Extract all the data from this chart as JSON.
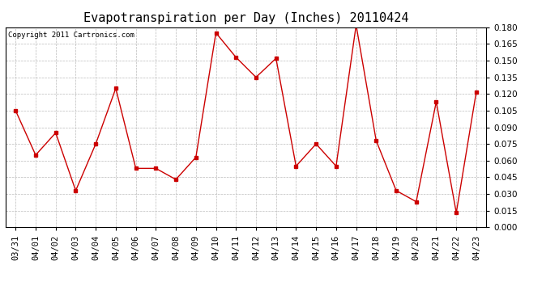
{
  "title": "Evapotranspiration per Day (Inches) 20110424",
  "copyright": "Copyright 2011 Cartronics.com",
  "x_labels": [
    "03/31",
    "04/01",
    "04/02",
    "04/03",
    "04/04",
    "04/05",
    "04/06",
    "04/07",
    "04/08",
    "04/09",
    "04/10",
    "04/11",
    "04/12",
    "04/13",
    "04/14",
    "04/15",
    "04/16",
    "04/17",
    "04/18",
    "04/19",
    "04/20",
    "04/21",
    "04/22",
    "04/23"
  ],
  "y_values": [
    0.105,
    0.065,
    0.085,
    0.033,
    0.075,
    0.125,
    0.053,
    0.053,
    0.043,
    0.063,
    0.175,
    0.153,
    0.135,
    0.152,
    0.055,
    0.075,
    0.055,
    0.182,
    0.078,
    0.033,
    0.023,
    0.113,
    0.013,
    0.122
  ],
  "line_color": "#cc0000",
  "marker": "s",
  "marker_size": 3,
  "ylim": [
    0.0,
    0.18
  ],
  "ytick_step": 0.015,
  "background_color": "#ffffff",
  "grid_color": "#bbbbbb",
  "title_fontsize": 11,
  "copyright_fontsize": 6.5,
  "tick_fontsize": 7.5
}
